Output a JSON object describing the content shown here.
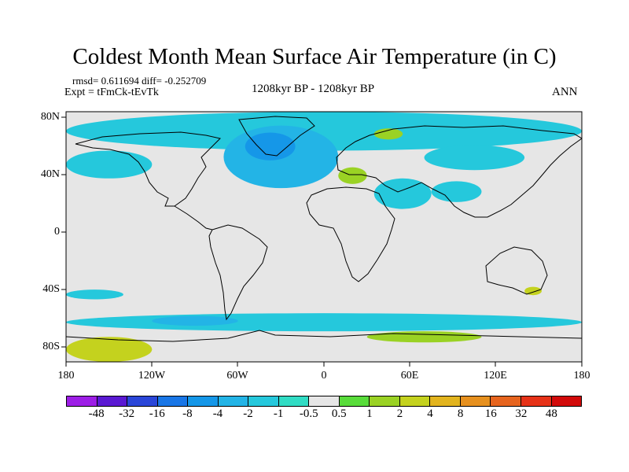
{
  "chart_data": {
    "type": "heatmap",
    "title": "Coldest Month Mean Surface Air Temperature (in C)",
    "stats": "rmsd= 0.611694 diff= -0.252709",
    "experiment": "Expt = tFmCk-tEvTk",
    "period": "1208kyr BP - 1208kyr BP",
    "season": "ANN",
    "x_ticks": [
      "180",
      "120W",
      "60W",
      "0",
      "60E",
      "120E",
      "180"
    ],
    "y_ticks": [
      "80N",
      "40N",
      "0",
      "40S",
      "80S"
    ],
    "xlim": [
      -180,
      180
    ],
    "ylim": [
      -90,
      90
    ],
    "colorbar": {
      "levels": [
        "-48",
        "-32",
        "-16",
        "-8",
        "-4",
        "-2",
        "-1",
        "-0.5",
        "0.5",
        "1",
        "2",
        "4",
        "8",
        "16",
        "32",
        "48"
      ],
      "colors": [
        "#9d1ee6",
        "#5a19d2",
        "#2a46d8",
        "#1976e6",
        "#1597e8",
        "#23b4e6",
        "#25c8dc",
        "#30dcc4",
        "#e6e6e6",
        "#58dc3a",
        "#9ad224",
        "#c4d21e",
        "#e2b41e",
        "#e6901e",
        "#e6641e",
        "#e63218",
        "#d20a0a"
      ]
    },
    "background_value_color": "#e6e6e6",
    "anomaly_regions": [
      {
        "name": "arctic-band",
        "lon": [
          -180,
          180
        ],
        "lat": [
          62,
          90
        ],
        "level": "-1"
      },
      {
        "name": "north-atlantic",
        "lon": [
          -70,
          10
        ],
        "lat": [
          35,
          80
        ],
        "level": "-2"
      },
      {
        "name": "greenland-core",
        "lon": [
          -55,
          -20
        ],
        "lat": [
          55,
          75
        ],
        "level": "-4"
      },
      {
        "name": "north-pacific",
        "lon": [
          -180,
          -120
        ],
        "lat": [
          42,
          62
        ],
        "level": "-1"
      },
      {
        "name": "siberia",
        "lon": [
          70,
          140
        ],
        "lat": [
          48,
          66
        ],
        "level": "-1"
      },
      {
        "name": "middle-east",
        "lon": [
          35,
          75
        ],
        "lat": [
          20,
          42
        ],
        "level": "-1"
      },
      {
        "name": "central-asia",
        "lon": [
          75,
          110
        ],
        "lat": [
          25,
          40
        ],
        "level": "-1"
      },
      {
        "name": "europe-warm",
        "lon": [
          10,
          30
        ],
        "lat": [
          38,
          50
        ],
        "level": "1"
      },
      {
        "name": "arctic-warm",
        "lon": [
          35,
          55
        ],
        "lat": [
          70,
          78
        ],
        "level": "1"
      },
      {
        "name": "southern-ocean",
        "lon": [
          -180,
          180
        ],
        "lat": [
          -68,
          -55
        ],
        "level": "-1"
      },
      {
        "name": "southern-ocean-deep",
        "lon": [
          -120,
          -60
        ],
        "lat": [
          -64,
          -57
        ],
        "level": "-2"
      },
      {
        "name": "antarctica-west",
        "lon": [
          -180,
          -120
        ],
        "lat": [
          -90,
          -72
        ],
        "level": "2"
      },
      {
        "name": "antarctica-east",
        "lon": [
          30,
          110
        ],
        "lat": [
          -76,
          -68
        ],
        "level": "1"
      },
      {
        "name": "south-pacific",
        "lon": [
          -180,
          -140
        ],
        "lat": [
          -45,
          -38
        ],
        "level": "-1"
      },
      {
        "name": "australia-warm",
        "lon": [
          140,
          152
        ],
        "lat": [
          -42,
          -36
        ],
        "level": "2"
      }
    ]
  }
}
